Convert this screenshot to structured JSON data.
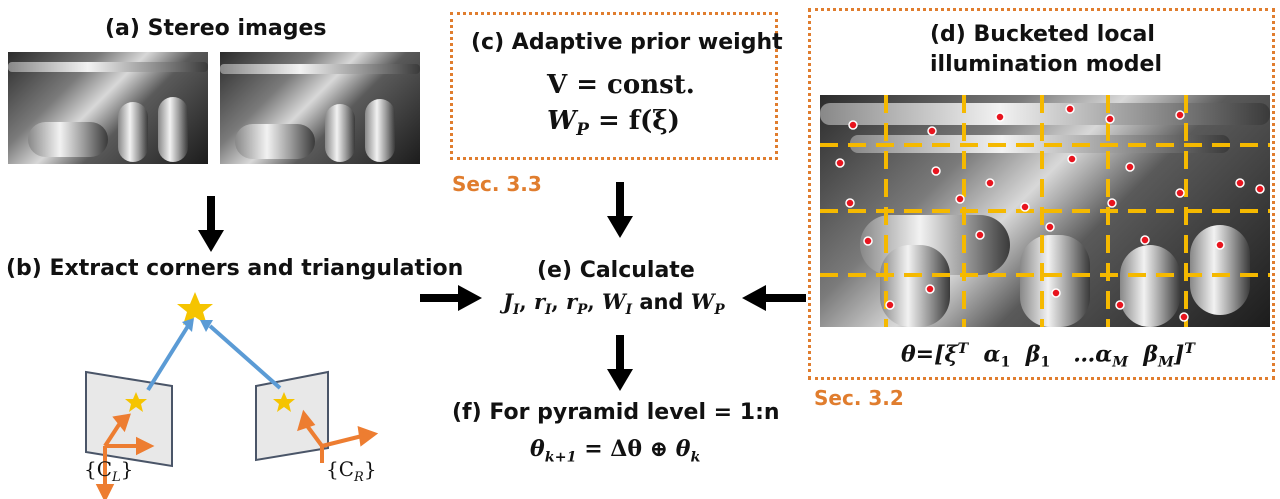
{
  "panel_a": {
    "label": "(a) Stereo images"
  },
  "panel_b": {
    "label": "(b) Extract corners and triangulation",
    "cam_left": "{C",
    "cam_left_sub": "L",
    "cam_right": "{C",
    "cam_right_sub": "R",
    "brace_close": "}"
  },
  "panel_c": {
    "label": "(c) Adaptive prior weight",
    "eq1": "V = const.",
    "eq2_lhs": "W",
    "eq2_sub": "P",
    "eq2_rhs": " = f(ξ)",
    "section": "Sec. 3.3"
  },
  "panel_d": {
    "label_line1": "(d) Bucketed local",
    "label_line2": "illumination model",
    "section": "Sec. 3.2",
    "theta_eq": "θ=[ξ",
    "theta_tail": "α",
    "alpha_sub1": "1",
    "beta": "β",
    "beta_sub1": "1",
    "dots": "…α",
    "alpha_subM": "M",
    "beta_subM": "M",
    "close": "]",
    "sup_T": "T"
  },
  "panel_e": {
    "label": "(e) Calculate",
    "j": "J",
    "j_sub": "I",
    "r": "r",
    "r_sub": "I",
    "rp_sub": "P",
    "w": "W",
    "w_sub_i": "I",
    "and_text": "and",
    "wp_sub": "P"
  },
  "panel_f": {
    "label": "(f) For pyramid level = 1:n",
    "lhs": "θ",
    "lhs_sub": "k+1",
    "mid": " = Δθ ⊕ ",
    "rhs": "θ",
    "rhs_sub": "k"
  },
  "colors": {
    "accent": "#e07d2e",
    "grid": "#f5b900",
    "feature": "#e8141e",
    "ray": "#5b9bd5",
    "star": "#f5c400",
    "axis": "#ed7d31"
  }
}
